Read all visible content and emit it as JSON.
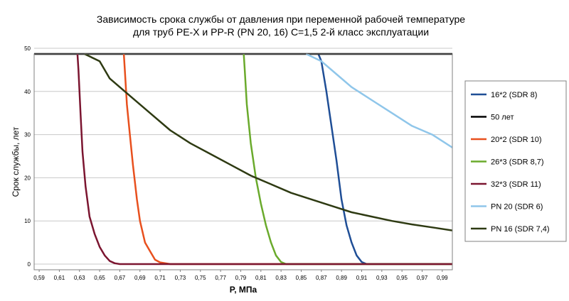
{
  "chart_data": {
    "type": "line",
    "title_lines": [
      "Зависимость срока службы от давления при переменной рабочей температуре",
      "для труб PE-X и PP-R (PN 20, 16) C=1,5 2-й класс эксплуатации"
    ],
    "xlabel": "P, МПа",
    "ylabel": "Срок службы, лет",
    "xlim": [
      0.585,
      1.0
    ],
    "ylim": [
      0,
      50
    ],
    "x_ticks": [
      "0,59",
      "0,61",
      "0,63",
      "0,65",
      "0,67",
      "0,69",
      "0,71",
      "0,73",
      "0,75",
      "0,77",
      "0,79",
      "0,81",
      "0,83",
      "0,85",
      "0,87",
      "0,89",
      "0,91",
      "0,93",
      "0,95",
      "0,97",
      "0,99"
    ],
    "y_ticks": [
      "0",
      "10",
      "20",
      "30",
      "40",
      "50"
    ],
    "grid": "horizontal",
    "legend_position": "right",
    "series": [
      {
        "name": "16*2 (SDR 8)",
        "color": "#1f4e96",
        "points": [
          [
            0.867,
            51
          ],
          [
            0.87,
            47
          ],
          [
            0.875,
            40
          ],
          [
            0.88,
            32
          ],
          [
            0.885,
            24
          ],
          [
            0.89,
            15
          ],
          [
            0.895,
            9
          ],
          [
            0.9,
            5
          ],
          [
            0.905,
            2
          ],
          [
            0.91,
            0.5
          ],
          [
            0.915,
            0
          ],
          [
            1.0,
            0
          ]
        ]
      },
      {
        "name": "50 лет",
        "color": "#000000",
        "points": [
          [
            0.585,
            50
          ],
          [
            1.0,
            50
          ]
        ]
      },
      {
        "name": "20*2 (SDR 10)",
        "color": "#e8501e",
        "points": [
          [
            0.674,
            51
          ],
          [
            0.675,
            45
          ],
          [
            0.677,
            37
          ],
          [
            0.68,
            30
          ],
          [
            0.683,
            23
          ],
          [
            0.687,
            15
          ],
          [
            0.69,
            10
          ],
          [
            0.695,
            5
          ],
          [
            0.7,
            3
          ],
          [
            0.705,
            1
          ],
          [
            0.71,
            0.4
          ],
          [
            0.72,
            0
          ],
          [
            1.0,
            0
          ]
        ]
      },
      {
        "name": "26*3 (SDR 8,7)",
        "color": "#6aaa2c",
        "points": [
          [
            0.793,
            51
          ],
          [
            0.794,
            45
          ],
          [
            0.796,
            37
          ],
          [
            0.8,
            28
          ],
          [
            0.805,
            20
          ],
          [
            0.81,
            14
          ],
          [
            0.815,
            9
          ],
          [
            0.82,
            5
          ],
          [
            0.825,
            2
          ],
          [
            0.83,
            0.5
          ],
          [
            0.835,
            0
          ],
          [
            1.0,
            0
          ]
        ]
      },
      {
        "name": "32*3 (SDR 11)",
        "color": "#7b1530",
        "points": [
          [
            0.628,
            51
          ],
          [
            0.629,
            45
          ],
          [
            0.631,
            35
          ],
          [
            0.633,
            26
          ],
          [
            0.636,
            18
          ],
          [
            0.64,
            11
          ],
          [
            0.645,
            7
          ],
          [
            0.65,
            4
          ],
          [
            0.655,
            2
          ],
          [
            0.66,
            0.7
          ],
          [
            0.665,
            0.2
          ],
          [
            0.67,
            0
          ],
          [
            1.0,
            0
          ]
        ]
      },
      {
        "name": "PN 20 (SDR 6)",
        "color": "#8fc6ea",
        "points": [
          [
            0.855,
            51
          ],
          [
            0.87,
            47
          ],
          [
            0.885,
            44
          ],
          [
            0.9,
            41
          ],
          [
            0.92,
            38
          ],
          [
            0.94,
            35
          ],
          [
            0.96,
            32
          ],
          [
            0.98,
            30
          ],
          [
            1.0,
            27
          ]
        ]
      },
      {
        "name": "PN 16 (SDR 7,4)",
        "color": "#2e3a12",
        "points": [
          [
            0.635,
            51
          ],
          [
            0.65,
            47
          ],
          [
            0.66,
            43
          ],
          [
            0.68,
            39
          ],
          [
            0.7,
            35
          ],
          [
            0.72,
            31
          ],
          [
            0.74,
            28
          ],
          [
            0.76,
            25.5
          ],
          [
            0.78,
            23
          ],
          [
            0.8,
            20.5
          ],
          [
            0.82,
            18.5
          ],
          [
            0.84,
            16.5
          ],
          [
            0.86,
            15
          ],
          [
            0.88,
            13.5
          ],
          [
            0.9,
            12
          ],
          [
            0.92,
            11
          ],
          [
            0.94,
            10
          ],
          [
            0.96,
            9.2
          ],
          [
            0.98,
            8.5
          ],
          [
            1.0,
            7.8
          ]
        ]
      }
    ]
  }
}
